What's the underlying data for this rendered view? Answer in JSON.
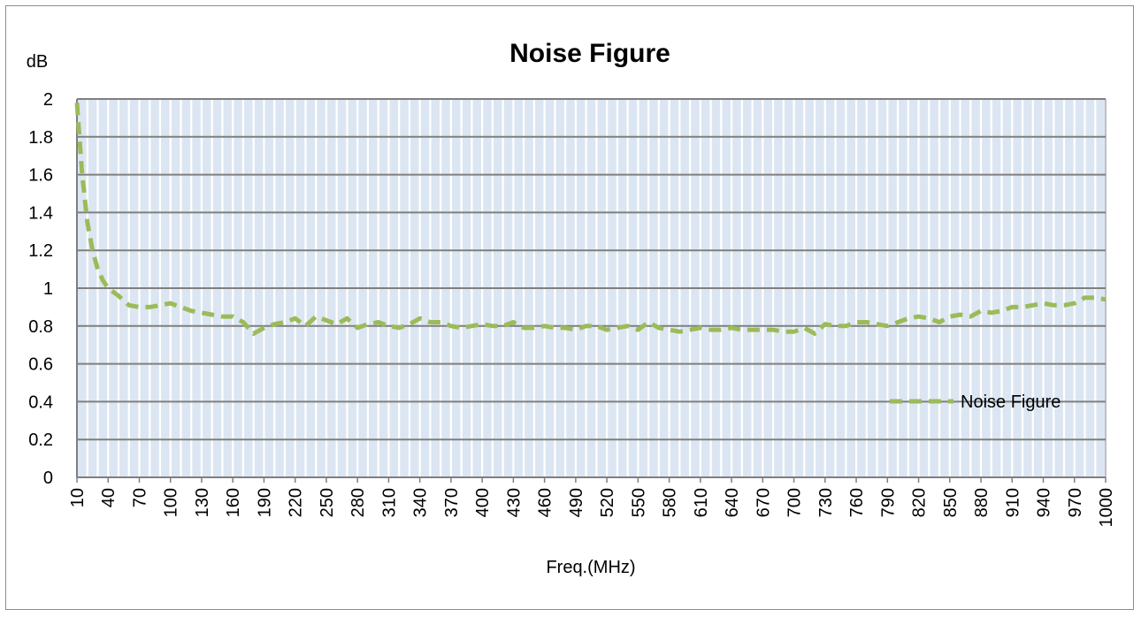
{
  "chart_data": {
    "type": "line",
    "title": "Noise Figure",
    "ylabel": "dB",
    "xlabel": "Freq.(MHz)",
    "ylim": [
      0,
      2
    ],
    "yticks": [
      "0",
      "0.2",
      "0.4",
      "0.6",
      "0.8",
      "1",
      "1.2",
      "1.4",
      "1.6",
      "1.8",
      "2"
    ],
    "xlim": [
      10,
      1000
    ],
    "xticks": [
      "10",
      "40",
      "70",
      "100",
      "130",
      "160",
      "190",
      "220",
      "250",
      "280",
      "310",
      "340",
      "370",
      "400",
      "430",
      "460",
      "490",
      "520",
      "550",
      "580",
      "610",
      "640",
      "670",
      "700",
      "730",
      "760",
      "790",
      "820",
      "850",
      "880",
      "910",
      "940",
      "970",
      "1000"
    ],
    "grid": true,
    "legend_position": "right",
    "series": [
      {
        "name": "Noise Figure",
        "color": "#9BBB59",
        "style": "dashed",
        "x": [
          10,
          15,
          20,
          25,
          30,
          35,
          40,
          50,
          60,
          70,
          80,
          90,
          100,
          110,
          120,
          130,
          140,
          150,
          160,
          170,
          180,
          190,
          200,
          210,
          220,
          230,
          240,
          250,
          260,
          270,
          280,
          290,
          300,
          310,
          320,
          330,
          340,
          350,
          360,
          370,
          380,
          390,
          400,
          410,
          420,
          430,
          440,
          450,
          460,
          470,
          480,
          490,
          500,
          510,
          520,
          530,
          540,
          550,
          560,
          570,
          580,
          590,
          600,
          610,
          620,
          630,
          640,
          650,
          660,
          670,
          680,
          690,
          700,
          710,
          720,
          730,
          740,
          750,
          760,
          770,
          780,
          790,
          800,
          810,
          820,
          830,
          840,
          850,
          860,
          870,
          880,
          890,
          900,
          910,
          920,
          930,
          940,
          950,
          960,
          970,
          980,
          990,
          1000
        ],
        "y": [
          1.98,
          1.6,
          1.35,
          1.2,
          1.1,
          1.04,
          1.0,
          0.96,
          0.91,
          0.9,
          0.9,
          0.91,
          0.92,
          0.9,
          0.88,
          0.87,
          0.86,
          0.85,
          0.85,
          0.82,
          0.76,
          0.79,
          0.81,
          0.82,
          0.84,
          0.8,
          0.85,
          0.83,
          0.81,
          0.84,
          0.79,
          0.81,
          0.82,
          0.8,
          0.79,
          0.81,
          0.84,
          0.82,
          0.82,
          0.8,
          0.79,
          0.8,
          0.81,
          0.8,
          0.8,
          0.82,
          0.79,
          0.79,
          0.8,
          0.79,
          0.79,
          0.78,
          0.8,
          0.8,
          0.78,
          0.79,
          0.8,
          0.78,
          0.82,
          0.79,
          0.78,
          0.77,
          0.78,
          0.79,
          0.78,
          0.78,
          0.79,
          0.78,
          0.78,
          0.78,
          0.78,
          0.77,
          0.77,
          0.79,
          0.76,
          0.81,
          0.8,
          0.8,
          0.82,
          0.82,
          0.81,
          0.8,
          0.82,
          0.84,
          0.85,
          0.84,
          0.82,
          0.85,
          0.86,
          0.85,
          0.88,
          0.87,
          0.88,
          0.9,
          0.9,
          0.91,
          0.92,
          0.91,
          0.91,
          0.92,
          0.95,
          0.95,
          0.94
        ]
      }
    ]
  }
}
